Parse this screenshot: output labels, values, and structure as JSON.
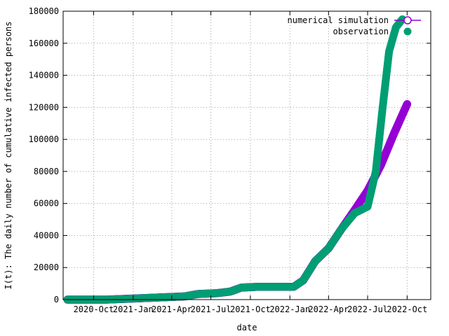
{
  "chart_data": {
    "type": "scatter",
    "title": "",
    "xlabel": "date",
    "ylabel": "I(t): The daily number of cumulative infected persons",
    "xlim": [
      "2020-07-22",
      "2022-11-25"
    ],
    "ylim": [
      0,
      180000
    ],
    "grid": true,
    "legend_position": "top-right",
    "x_ticks": [
      {
        "date": "2020-10-01",
        "label": "2020-Oct"
      },
      {
        "date": "2021-01-01",
        "label": "2021-Jan"
      },
      {
        "date": "2021-04-01",
        "label": "2021-Apr"
      },
      {
        "date": "2021-07-01",
        "label": "2021-Jul"
      },
      {
        "date": "2021-10-01",
        "label": "2021-Oct"
      },
      {
        "date": "2022-01-01",
        "label": "2022-Jan"
      },
      {
        "date": "2022-04-01",
        "label": "2022-Apr"
      },
      {
        "date": "2022-07-01",
        "label": "2022-Jul"
      },
      {
        "date": "2022-10-01",
        "label": "2022-Oct"
      }
    ],
    "y_ticks": [
      0,
      20000,
      40000,
      60000,
      80000,
      100000,
      120000,
      140000,
      160000,
      180000
    ],
    "series": [
      {
        "name": "numerical simulation",
        "style": "line-open-circle",
        "color": "#9400d3",
        "points": [
          [
            "2020-08-01",
            0
          ],
          [
            "2020-11-01",
            0
          ],
          [
            "2021-02-01",
            1000
          ],
          [
            "2021-05-01",
            2000
          ],
          [
            "2021-06-01",
            3500
          ],
          [
            "2021-07-15",
            4000
          ],
          [
            "2021-08-15",
            5000
          ],
          [
            "2021-09-10",
            7500
          ],
          [
            "2021-10-20",
            8000
          ],
          [
            "2022-01-10",
            8000
          ],
          [
            "2022-02-01",
            12000
          ],
          [
            "2022-03-01",
            24000
          ],
          [
            "2022-04-01",
            32000
          ],
          [
            "2022-05-01",
            44000
          ],
          [
            "2022-06-01",
            56000
          ],
          [
            "2022-07-01",
            68000
          ],
          [
            "2022-08-01",
            84000
          ],
          [
            "2022-09-01",
            104000
          ],
          [
            "2022-10-01",
            122000
          ]
        ]
      },
      {
        "name": "observation",
        "style": "filled-circle",
        "color": "#009e73",
        "points": [
          [
            "2020-08-01",
            0
          ],
          [
            "2020-11-01",
            0
          ],
          [
            "2021-02-01",
            1000
          ],
          [
            "2021-05-01",
            2000
          ],
          [
            "2021-06-01",
            3500
          ],
          [
            "2021-07-15",
            4000
          ],
          [
            "2021-08-15",
            5000
          ],
          [
            "2021-09-10",
            7500
          ],
          [
            "2021-10-20",
            8000
          ],
          [
            "2022-01-10",
            8000
          ],
          [
            "2022-02-01",
            12000
          ],
          [
            "2022-03-01",
            24000
          ],
          [
            "2022-04-01",
            32000
          ],
          [
            "2022-05-01",
            44000
          ],
          [
            "2022-06-01",
            54000
          ],
          [
            "2022-07-01",
            58000
          ],
          [
            "2022-07-20",
            80000
          ],
          [
            "2022-08-05",
            120000
          ],
          [
            "2022-08-20",
            155000
          ],
          [
            "2022-09-05",
            170000
          ],
          [
            "2022-09-20",
            175000
          ]
        ]
      }
    ]
  }
}
